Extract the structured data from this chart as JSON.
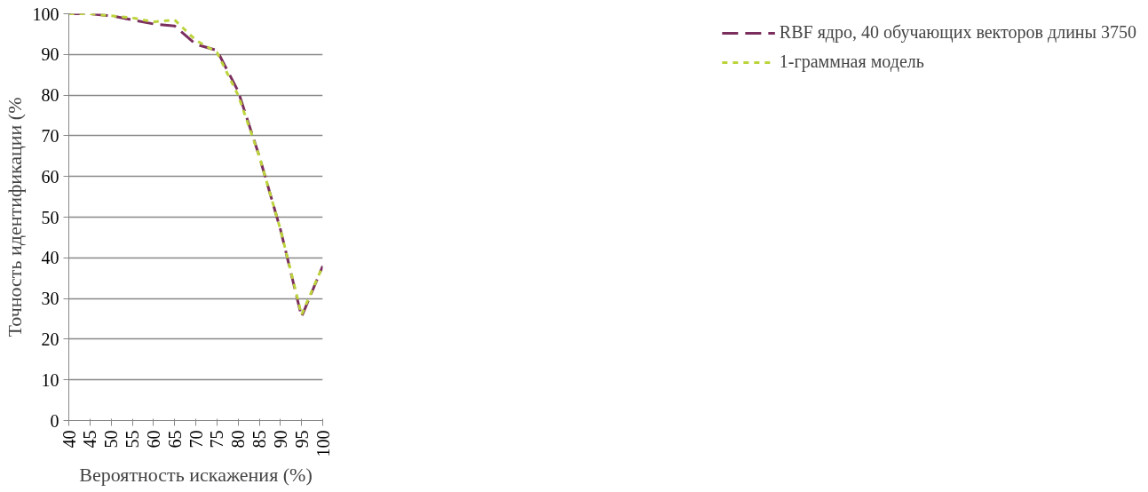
{
  "chart_data": {
    "type": "line",
    "xlabel": "Вероятность искажения (%)",
    "ylabel": "Точность идентификации (%",
    "x": [
      40,
      45,
      50,
      55,
      60,
      65,
      70,
      75,
      80,
      85,
      90,
      95,
      100
    ],
    "series": [
      {
        "name": "RBF ядро, 40 обучающих векторов длины 3750",
        "color": "#7b2f5e",
        "line_style": "dashed",
        "values": [
          100,
          100,
          99.5,
          98.5,
          97.5,
          97,
          92.5,
          91,
          81,
          65,
          47,
          25.5,
          38
        ]
      },
      {
        "name": "1-граммная модель",
        "color": "#bcd33c",
        "line_style": "dotted",
        "values": [
          100,
          100,
          99.5,
          99,
          98,
          98.5,
          93.5,
          90.5,
          80,
          65,
          47,
          26,
          38
        ]
      }
    ],
    "xlim": [
      40,
      100
    ],
    "xticks": [
      40,
      45,
      50,
      55,
      60,
      65,
      70,
      75,
      80,
      85,
      90,
      95,
      100
    ],
    "ylim": [
      0,
      100
    ],
    "yticks": [
      0,
      10,
      20,
      30,
      40,
      50,
      60,
      70,
      80,
      90,
      100
    ],
    "grid": "y",
    "legend": "right",
    "marker": "none"
  }
}
